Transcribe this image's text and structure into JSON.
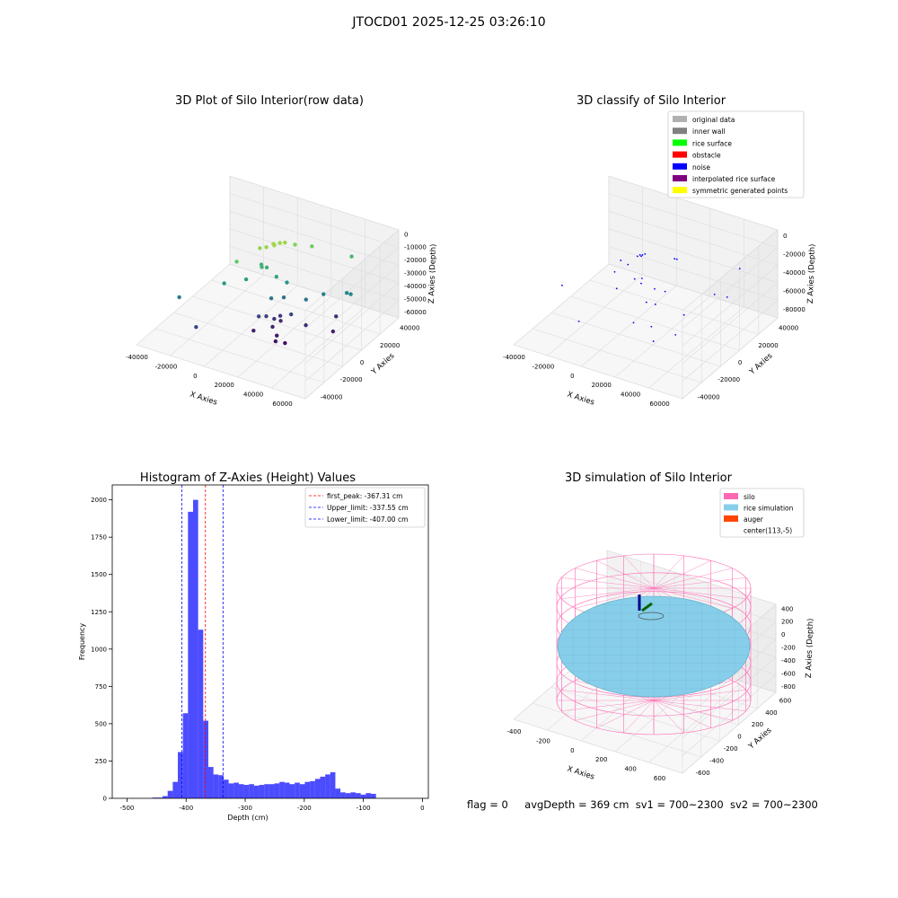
{
  "figure": {
    "suptitle": "JTOCD01 2025-12-25 03:26:10",
    "status": {
      "flag": "flag = 0",
      "avg_depth": "avgDepth = 369 cm",
      "sv1": "sv1 = 700~2300",
      "sv2": "sv2 = 700~2300"
    }
  },
  "chart_data": [
    {
      "type": "scatter",
      "title": "3D Plot of Silo Interior(row data)",
      "xlabel": "X Axies",
      "ylabel": "Y Axies",
      "zlabel": "Z Axies (Depth)",
      "x_ticks": [
        "-40000",
        "-20000",
        "0",
        "20000",
        "40000",
        "60000"
      ],
      "y_ticks": [
        "-40000",
        "-20000",
        "0",
        "20000",
        "40000"
      ],
      "z_ticks": [
        "0",
        "-10000",
        "-20000",
        "-30000",
        "-40000",
        "-50000",
        "-60000"
      ],
      "colormap": [
        "#440154",
        "#3b528b",
        "#21918c",
        "#5ec962",
        "#fde725"
      ],
      "points": [
        {
          "x": 5000,
          "y": 10000,
          "z": -8000
        },
        {
          "x": 3000,
          "y": 12000,
          "z": -9000
        },
        {
          "x": 6000,
          "y": 14000,
          "z": -8500
        },
        {
          "x": 1000,
          "y": 8000,
          "z": -9500
        },
        {
          "x": 8000,
          "y": 16000,
          "z": -9000
        },
        {
          "x": -2000,
          "y": 6000,
          "z": -10000
        },
        {
          "x": 4000,
          "y": 11000,
          "z": -8200
        },
        {
          "x": -10000,
          "y": -5000,
          "z": -16000
        },
        {
          "x": 12000,
          "y": 20000,
          "z": -12000
        },
        {
          "x": 20000,
          "y": 25000,
          "z": -14000
        },
        {
          "x": 40000,
          "y": 35000,
          "z": -22000
        },
        {
          "x": 0,
          "y": 5000,
          "z": -24000
        },
        {
          "x": -1000,
          "y": 6000,
          "z": -23000
        },
        {
          "x": 2000,
          "y": 7000,
          "z": -25000
        },
        {
          "x": 10000,
          "y": 5000,
          "z": -28000
        },
        {
          "x": -5000,
          "y": -3000,
          "z": -30000
        },
        {
          "x": 15000,
          "y": 8000,
          "z": -33000
        },
        {
          "x": -35000,
          "y": -25000,
          "z": -40000
        },
        {
          "x": -15000,
          "y": -10000,
          "z": -32000
        },
        {
          "x": 50000,
          "y": 20000,
          "z": -38000
        },
        {
          "x": 48000,
          "y": 19000,
          "z": -37000
        },
        {
          "x": 35000,
          "y": 15000,
          "z": -40000
        },
        {
          "x": 28000,
          "y": 8000,
          "z": -42000
        },
        {
          "x": 10000,
          "y": 0,
          "z": -42000
        },
        {
          "x": 15000,
          "y": 5000,
          "z": -43000
        },
        {
          "x": -20000,
          "y": -30000,
          "z": -55000
        },
        {
          "x": 5000,
          "y": -5000,
          "z": -55000
        },
        {
          "x": 8000,
          "y": -2000,
          "z": -56000
        },
        {
          "x": 12000,
          "y": 0,
          "z": -58000
        },
        {
          "x": 15000,
          "y": 2000,
          "z": -60000
        },
        {
          "x": 14000,
          "y": 3000,
          "z": -57000
        },
        {
          "x": 20000,
          "y": 5000,
          "z": -55000
        },
        {
          "x": 13000,
          "y": -3000,
          "z": -62000
        },
        {
          "x": 5000,
          "y": -10000,
          "z": -63000
        },
        {
          "x": 18000,
          "y": -6000,
          "z": -65000
        },
        {
          "x": 30000,
          "y": 5000,
          "z": -60000
        },
        {
          "x": 20000,
          "y": -10000,
          "z": -66000
        },
        {
          "x": 25000,
          "y": -8000,
          "z": -67000
        },
        {
          "x": 45000,
          "y": 10000,
          "z": -63000
        },
        {
          "x": 40000,
          "y": 20000,
          "z": -60000
        }
      ]
    },
    {
      "type": "scatter",
      "title": "3D classify of Silo Interior",
      "xlabel": "X Axies",
      "ylabel": "Y Axies",
      "zlabel": "Z Axies (Depth)",
      "x_ticks": [
        "-40000",
        "-20000",
        "0",
        "20000",
        "40000",
        "60000"
      ],
      "y_ticks": [
        "-40000",
        "-20000",
        "0",
        "20000",
        "40000"
      ],
      "z_ticks": [
        "0",
        "-20000",
        "-40000",
        "-60000",
        "-80000"
      ],
      "legend_position": "upper-right",
      "legend": [
        {
          "label": "original data",
          "color": "#b0b0b0"
        },
        {
          "label": "inner wall",
          "color": "#808080"
        },
        {
          "label": "rice surface",
          "color": "#00ff00"
        },
        {
          "label": "obstacle",
          "color": "#ff0000"
        },
        {
          "label": "noise",
          "color": "#0000ff"
        },
        {
          "label": "interpolated rice surface",
          "color": "#800080"
        },
        {
          "label": "symmetric generated points",
          "color": "#ffff00"
        }
      ],
      "noise_points": [
        {
          "x": 0,
          "y": 5000,
          "z": -15000
        },
        {
          "x": 1000,
          "y": 6000,
          "z": -15500
        },
        {
          "x": -1000,
          "y": 4000,
          "z": -16000
        },
        {
          "x": 2000,
          "y": 7000,
          "z": -15000
        },
        {
          "x": 500,
          "y": 5500,
          "z": -16500
        },
        {
          "x": -8000,
          "y": -2000,
          "z": -18000
        },
        {
          "x": 20000,
          "y": 10000,
          "z": -14000
        },
        {
          "x": 50000,
          "y": 30000,
          "z": -28000
        },
        {
          "x": -35000,
          "y": -20000,
          "z": -40000
        },
        {
          "x": -10000,
          "y": -5000,
          "z": -28000
        },
        {
          "x": 5000,
          "y": 0,
          "z": -32000
        },
        {
          "x": -5000,
          "y": -10000,
          "z": -38000
        },
        {
          "x": 10000,
          "y": 5000,
          "z": -45000
        },
        {
          "x": 15000,
          "y": 8000,
          "z": -48000
        },
        {
          "x": 40000,
          "y": 20000,
          "z": -50000
        },
        {
          "x": 45000,
          "y": 25000,
          "z": -55000
        },
        {
          "x": 8000,
          "y": 0,
          "z": -55000
        },
        {
          "x": 12000,
          "y": 3000,
          "z": -58000
        },
        {
          "x": 30000,
          "y": 5000,
          "z": -62000
        },
        {
          "x": -20000,
          "y": -25000,
          "z": -65000
        },
        {
          "x": 5000,
          "y": -8000,
          "z": -70000
        },
        {
          "x": 15000,
          "y": -5000,
          "z": -72000
        },
        {
          "x": 30000,
          "y": -3000,
          "z": -75000
        },
        {
          "x": 20000,
          "y": -10000,
          "z": -80000
        },
        {
          "x": -6000,
          "y": 2000,
          "z": -25000
        },
        {
          "x": 18000,
          "y": 15000,
          "z": -20000
        },
        {
          "x": 3000,
          "y": 2000,
          "z": -40000
        },
        {
          "x": 0,
          "y": 0,
          "z": -35000
        }
      ]
    },
    {
      "type": "bar",
      "title": "Histogram of Z-Axies (Height) Values",
      "xlabel": "Depth (cm)",
      "ylabel": "Frequency",
      "xlim": [
        -525,
        10
      ],
      "ylim": [
        0,
        2100
      ],
      "x_ticks": [
        -500,
        -400,
        -300,
        -200,
        -100,
        0
      ],
      "y_ticks": [
        0,
        250,
        500,
        750,
        1000,
        1250,
        1500,
        1750,
        2000
      ],
      "bar_color": "#0000ff",
      "bin_width": 8.6,
      "bin_start": -500,
      "values": [
        0,
        0,
        0,
        0,
        0,
        5,
        5,
        15,
        50,
        110,
        310,
        570,
        1920,
        2000,
        1130,
        520,
        210,
        160,
        155,
        125,
        100,
        105,
        95,
        90,
        95,
        85,
        90,
        95,
        95,
        100,
        110,
        105,
        95,
        105,
        95,
        110,
        115,
        130,
        145,
        160,
        175,
        65,
        40,
        35,
        40,
        35,
        25,
        35,
        30
      ],
      "lines": [
        {
          "label": "first_peak: -367.31 cm",
          "value": -367.31,
          "color": "#ff0000"
        },
        {
          "label": "Upper_limit: -337.55 cm",
          "value": -337.55,
          "color": "#0000ff"
        },
        {
          "label": "Lower_limit: -407.00 cm",
          "value": -407.0,
          "color": "#0000ff"
        }
      ],
      "legend_position": "upper-right"
    },
    {
      "type": "3d-surface",
      "title": "3D simulation of Silo Interior",
      "xlabel": "X Axies",
      "ylabel": "Y Axies",
      "zlabel": "Z Axies (Depth)",
      "x_ticks": [
        "-400",
        "-200",
        "0",
        "200",
        "400",
        "600"
      ],
      "y_ticks": [
        "-600",
        "-400",
        "-200",
        "0",
        "200",
        "400",
        "600"
      ],
      "z_ticks": [
        "400",
        "200",
        "0",
        "-200",
        "-400",
        "-600",
        "-800"
      ],
      "legend_position": "upper-right",
      "legend": [
        {
          "label": "silo",
          "color": "#ff69b4"
        },
        {
          "label": "rice simulation",
          "color": "#87ceeb"
        },
        {
          "label": "auger",
          "color": "#ff4500"
        },
        {
          "label": "center(113,-5)",
          "color": "#ffffff"
        }
      ]
    }
  ]
}
